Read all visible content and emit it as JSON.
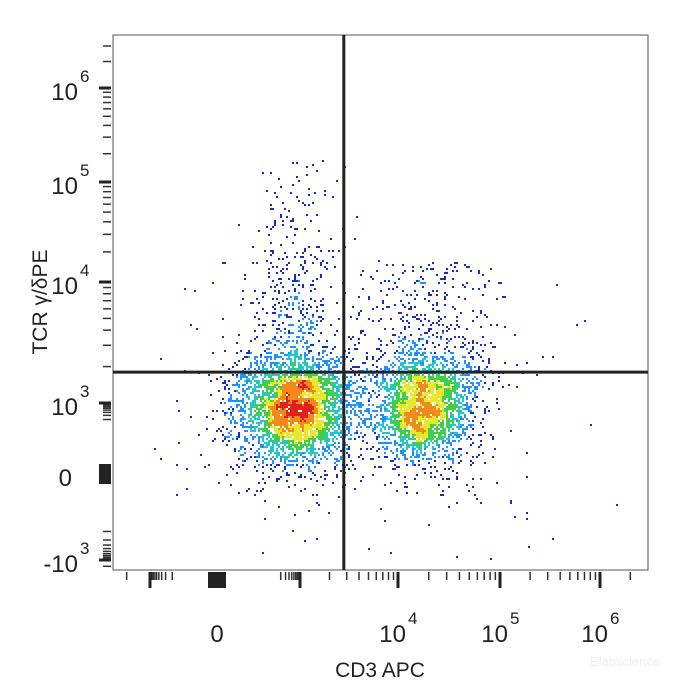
{
  "chart_data": {
    "type": "scatter",
    "subtype": "flow-cytometry density dot plot",
    "xlabel": "CD3 APC",
    "ylabel": "TCR γ/δPE",
    "x_scale": "biexponential",
    "y_scale": "biexponential",
    "x_ticks": [
      {
        "value": 0,
        "base": "0",
        "exp": ""
      },
      {
        "value": 10000,
        "base": "10",
        "exp": "4"
      },
      {
        "value": 100000,
        "base": "10",
        "exp": "5"
      },
      {
        "value": 1000000,
        "base": "10",
        "exp": "6"
      }
    ],
    "y_ticks": [
      {
        "value": -1000,
        "base": "-10",
        "exp": "3"
      },
      {
        "value": 0,
        "base": "0",
        "exp": ""
      },
      {
        "value": 1000,
        "base": "10",
        "exp": "3"
      },
      {
        "value": 10000,
        "base": "10",
        "exp": "4"
      },
      {
        "value": 100000,
        "base": "10",
        "exp": "5"
      },
      {
        "value": 1000000,
        "base": "10",
        "exp": "6"
      }
    ],
    "quadrant_gate": {
      "x": 2800,
      "y": 1800
    },
    "populations": [
      {
        "center_x": 600,
        "center_y": 500,
        "events": 3500
      },
      {
        "center_x": 18000,
        "center_y": 500,
        "events": 2500
      },
      {
        "center_x": 600,
        "center_y": 20000,
        "events": 420
      },
      {
        "center_x": 20000,
        "center_y": 4000,
        "events": 450
      }
    ],
    "colormap": [
      "#1a2fb0",
      "#1e90ff",
      "#22c7c7",
      "#3fcf4a",
      "#e8e82a",
      "#f08a1a",
      "#e0201a"
    ],
    "grid": false,
    "legend": "none"
  },
  "watermark": "Elabscience"
}
